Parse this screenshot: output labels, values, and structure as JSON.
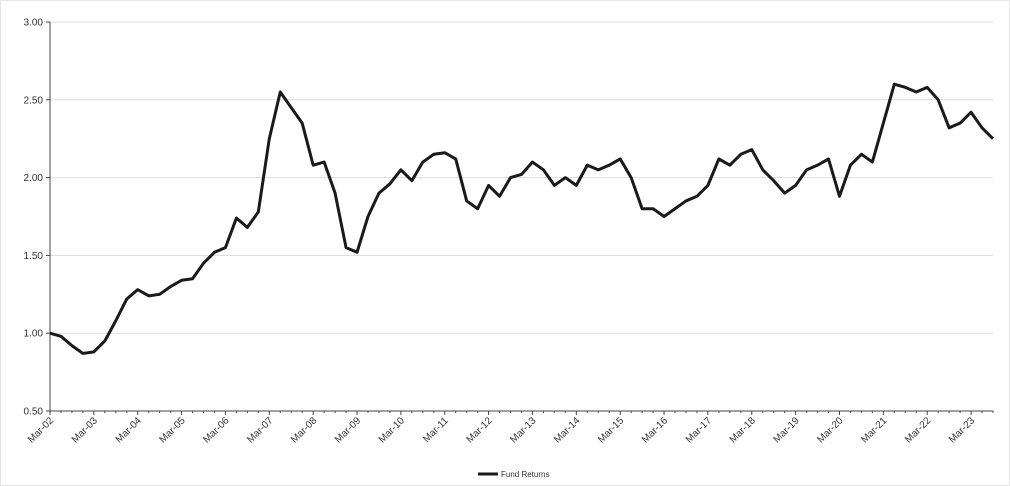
{
  "chart_data": {
    "type": "line",
    "categories": [
      "Mar-02",
      null,
      null,
      null,
      "Mar-03",
      null,
      null,
      null,
      "Mar-04",
      null,
      null,
      null,
      "Mar-05",
      null,
      null,
      null,
      "Mar-06",
      null,
      null,
      null,
      "Mar-07",
      null,
      null,
      null,
      "Mar-08",
      null,
      null,
      null,
      "Mar-09",
      null,
      null,
      null,
      "Mar-10",
      null,
      null,
      null,
      "Mar-11",
      null,
      null,
      null,
      "Mar-12",
      null,
      null,
      null,
      "Mar-13",
      null,
      null,
      null,
      "Mar-14",
      null,
      null,
      null,
      "Mar-15",
      null,
      null,
      null,
      "Mar-16",
      null,
      null,
      null,
      "Mar-17",
      null,
      null,
      null,
      "Mar-18",
      null,
      null,
      null,
      "Mar-19",
      null,
      null,
      null,
      "Mar-20",
      null,
      null,
      null,
      "Mar-21",
      null,
      null,
      null,
      "Mar-22",
      null,
      null,
      null,
      "Mar-23",
      null,
      null
    ],
    "series": [
      {
        "name": "Fund Returns",
        "color": "#1a1a1a",
        "values": [
          1.0,
          0.98,
          0.92,
          0.87,
          0.88,
          0.95,
          1.08,
          1.22,
          1.28,
          1.24,
          1.25,
          1.3,
          1.34,
          1.35,
          1.45,
          1.52,
          1.55,
          1.74,
          1.68,
          1.78,
          2.25,
          2.55,
          2.45,
          2.35,
          2.08,
          2.1,
          1.9,
          1.55,
          1.52,
          1.75,
          1.9,
          1.96,
          2.05,
          1.98,
          2.1,
          2.15,
          2.16,
          2.12,
          1.85,
          1.8,
          1.95,
          1.88,
          2.0,
          2.02,
          2.1,
          2.05,
          1.95,
          2.0,
          1.95,
          2.08,
          2.05,
          2.08,
          2.12,
          2.0,
          1.8,
          1.8,
          1.75,
          1.8,
          1.85,
          1.88,
          1.95,
          2.12,
          2.08,
          2.15,
          2.18,
          2.05,
          1.98,
          1.9,
          1.95,
          2.05,
          2.08,
          2.12,
          1.88,
          2.08,
          2.15,
          2.1,
          2.35,
          2.6,
          2.58,
          2.55,
          2.58,
          2.5,
          2.32,
          2.35,
          2.42,
          2.32,
          2.25
        ]
      }
    ],
    "ylim": [
      0.5,
      3.0
    ],
    "yticks": [
      {
        "value": 0.5,
        "label": "0.50"
      },
      {
        "value": 1.0,
        "label": "1.00"
      },
      {
        "value": 1.5,
        "label": "1.50"
      },
      {
        "value": 2.0,
        "label": "2.00"
      },
      {
        "value": 2.5,
        "label": "2.50"
      },
      {
        "value": 3.0,
        "label": "3.00"
      }
    ],
    "grid": true,
    "legend": "bottom"
  }
}
